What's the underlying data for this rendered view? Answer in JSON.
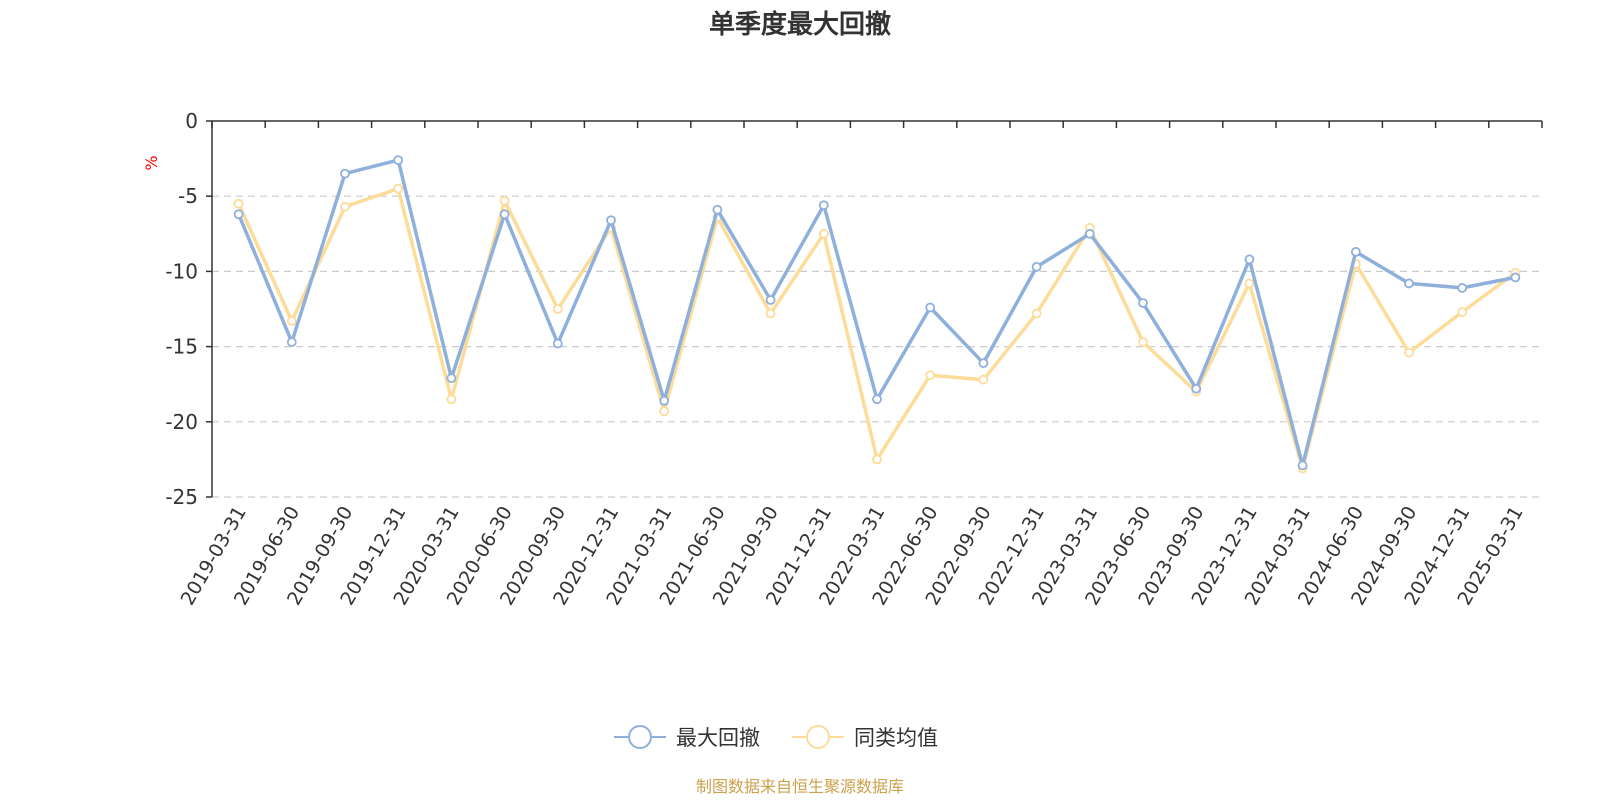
{
  "chart_data": {
    "type": "line",
    "title": "单季度最大回撤",
    "ylabel": "%",
    "ylim": [
      -25,
      0
    ],
    "yticks": [
      0,
      -5,
      -10,
      -15,
      -20,
      -25
    ],
    "grid": true,
    "legend_position": "bottom",
    "categories": [
      "2019-03-31",
      "2019-06-30",
      "2019-09-30",
      "2019-12-31",
      "2020-03-31",
      "2020-06-30",
      "2020-09-30",
      "2020-12-31",
      "2021-03-31",
      "2021-06-30",
      "2021-09-30",
      "2021-12-31",
      "2022-03-31",
      "2022-06-30",
      "2022-09-30",
      "2022-12-31",
      "2023-03-31",
      "2023-06-30",
      "2023-09-30",
      "2023-12-31",
      "2024-03-31",
      "2024-06-30",
      "2024-09-30",
      "2024-12-31",
      "2025-03-31"
    ],
    "series": [
      {
        "name": "最大回撤",
        "color": "#8eb0db",
        "values": [
          -6.2,
          -14.7,
          -3.5,
          -2.6,
          -17.1,
          -6.2,
          -14.8,
          -6.6,
          -18.6,
          -5.9,
          -11.9,
          -5.6,
          -18.5,
          -12.4,
          -16.1,
          -9.7,
          -7.5,
          -12.1,
          -17.8,
          -9.2,
          -22.9,
          -8.7,
          -10.8,
          -11.1,
          -10.4
        ]
      },
      {
        "name": "同类均值",
        "color": "#fddc9a",
        "values": [
          -5.5,
          -13.3,
          -5.7,
          -4.5,
          -18.5,
          -5.3,
          -12.5,
          -7.1,
          -19.3,
          -6.4,
          -12.8,
          -7.5,
          -22.5,
          -16.9,
          -17.2,
          -12.8,
          -7.1,
          -14.7,
          -18.0,
          -10.8,
          -23.1,
          -9.5,
          -15.4,
          -12.7,
          -10.1
        ]
      }
    ],
    "source_note": "制图数据来自恒生聚源数据库",
    "axis_color": "#333333",
    "grid_color": "#cccccc",
    "unit_color": "#ff0000",
    "source_color": "#c9a24b"
  }
}
